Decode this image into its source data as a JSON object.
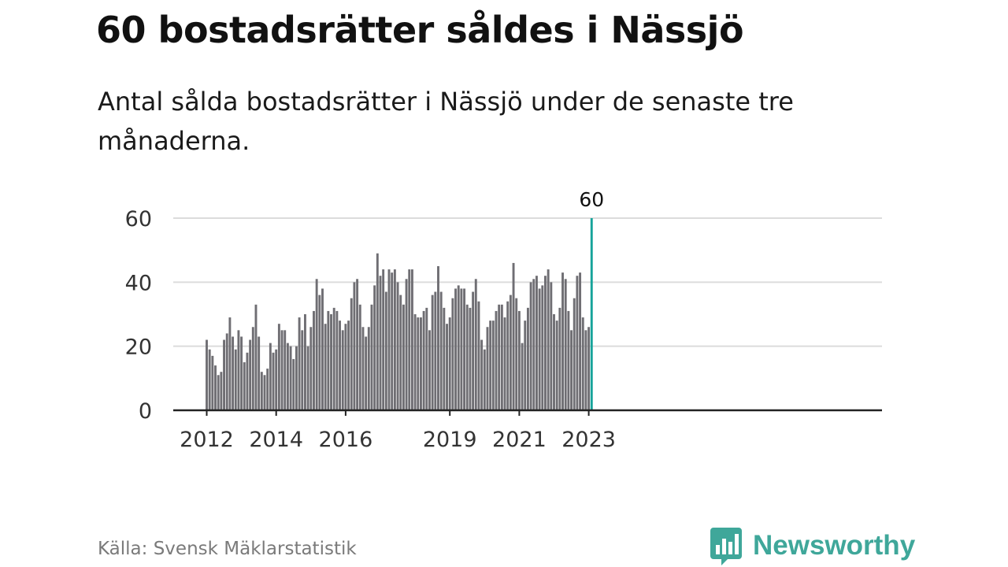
{
  "title": "60 bostadsrätter såldes i Nässjö",
  "subtitle": "Antal sålda bostadsrätter i Nässjö under de senaste tre månaderna.",
  "source": "Källa: Svensk Mäklarstatistik",
  "brand": {
    "name": "Newsworthy",
    "icon": "newsworthy-logo-icon",
    "color": "#3fa79a"
  },
  "colors": {
    "bar": "#6f6e73",
    "highlight": "#16a39a",
    "grid": "#dcdcdc",
    "axis": "#222222"
  },
  "chart_data": {
    "type": "bar",
    "title": "60 bostadsrätter såldes i Nässjö",
    "xlabel": "",
    "ylabel": "",
    "ylim": [
      0,
      60
    ],
    "yticks": [
      0,
      20,
      40,
      60
    ],
    "xticks": [
      {
        "label": "2012",
        "index": 0
      },
      {
        "label": "2014",
        "index": 24
      },
      {
        "label": "2016",
        "index": 48
      },
      {
        "label": "2019",
        "index": 84
      },
      {
        "label": "2021",
        "index": 108
      },
      {
        "label": "2023",
        "index": 132
      }
    ],
    "start": "2012-01",
    "grid": true,
    "highlight": {
      "index": 133,
      "label": "60"
    },
    "values": [
      22,
      19,
      17,
      14,
      11,
      12,
      22,
      24,
      29,
      23,
      19,
      25,
      23,
      15,
      18,
      22,
      26,
      33,
      23,
      12,
      11,
      13,
      21,
      18,
      19,
      27,
      25,
      25,
      21,
      20,
      16,
      20,
      29,
      25,
      30,
      20,
      26,
      31,
      41,
      36,
      38,
      27,
      31,
      30,
      32,
      31,
      28,
      25,
      27,
      28,
      35,
      40,
      41,
      33,
      26,
      23,
      26,
      33,
      39,
      49,
      42,
      44,
      37,
      44,
      43,
      44,
      40,
      36,
      33,
      41,
      44,
      44,
      30,
      29,
      29,
      31,
      32,
      25,
      36,
      37,
      45,
      37,
      32,
      27,
      29,
      35,
      38,
      39,
      38,
      38,
      33,
      32,
      37,
      41,
      34,
      22,
      19,
      26,
      28,
      28,
      31,
      33,
      33,
      29,
      34,
      36,
      46,
      35,
      31,
      21,
      28,
      32,
      40,
      41,
      42,
      38,
      39,
      42,
      44,
      40,
      30,
      28,
      32,
      43,
      41,
      31,
      25,
      35,
      42,
      43,
      29,
      25,
      26,
      60
    ]
  }
}
